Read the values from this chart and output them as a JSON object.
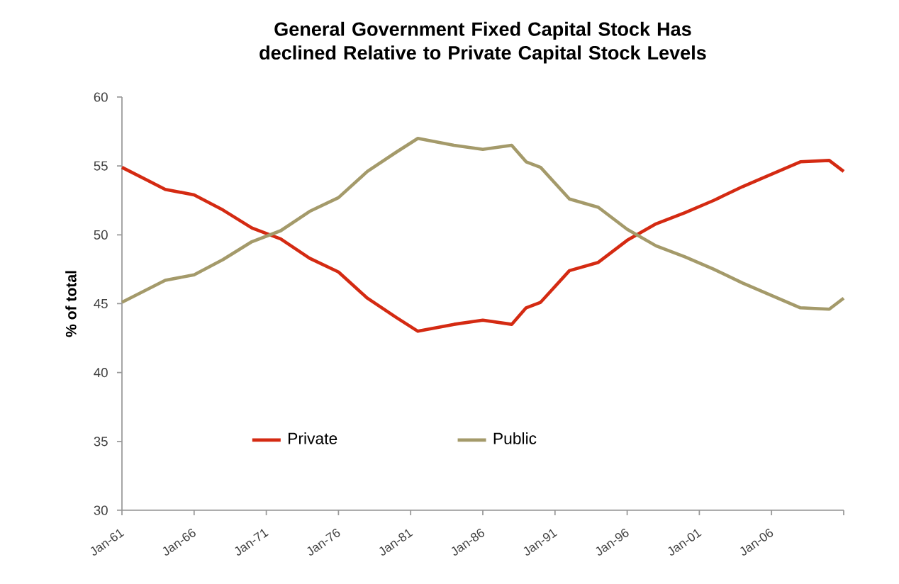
{
  "chart_data": {
    "type": "line",
    "title": "General Government Fixed Capital Stock Has declined Relative to Private Capital Stock Levels",
    "ylabel": "% of total",
    "x": [
      "1961-01",
      "1964-01",
      "1966-01",
      "1968-01",
      "1970-01",
      "1972-01",
      "1974-01",
      "1976-01",
      "1978-01",
      "1980-01",
      "1981-07",
      "1984-01",
      "1986-01",
      "1988-01",
      "1989-01",
      "1990-01",
      "1992-01",
      "1994-01",
      "1996-01",
      "1998-01",
      "2000-01",
      "2002-01",
      "2004-01",
      "2006-01",
      "2008-01",
      "2010-01",
      "2011-01"
    ],
    "series": [
      {
        "name": "Private",
        "color": "#d42a12",
        "values": [
          54.9,
          53.3,
          52.9,
          51.8,
          50.5,
          49.7,
          48.3,
          47.3,
          45.4,
          44.0,
          43.0,
          43.5,
          43.8,
          43.5,
          44.7,
          45.1,
          47.4,
          48.0,
          49.6,
          50.8,
          51.6,
          52.5,
          53.5,
          54.4,
          55.3,
          55.4,
          54.6
        ]
      },
      {
        "name": "Public",
        "color": "#a49a6a",
        "values": [
          45.1,
          46.7,
          47.1,
          48.2,
          49.5,
          50.3,
          51.7,
          52.7,
          54.6,
          56.0,
          57.0,
          56.5,
          56.2,
          56.5,
          55.3,
          54.9,
          52.6,
          52.0,
          50.4,
          49.2,
          48.4,
          47.5,
          46.5,
          45.6,
          44.7,
          44.6,
          45.4
        ]
      }
    ],
    "xlim": [
      "1961-01",
      "2011-01"
    ],
    "xticks": [
      {
        "value": "1961-01",
        "label": "Jan-61"
      },
      {
        "value": "1966-01",
        "label": "Jan-66"
      },
      {
        "value": "1971-01",
        "label": "Jan-71"
      },
      {
        "value": "1976-01",
        "label": "Jan-76"
      },
      {
        "value": "1981-01",
        "label": "Jan-81"
      },
      {
        "value": "1986-01",
        "label": "Jan-86"
      },
      {
        "value": "1991-01",
        "label": "Jan-91"
      },
      {
        "value": "1996-01",
        "label": "Jan-96"
      },
      {
        "value": "2001-01",
        "label": "Jan-01"
      },
      {
        "value": "2006-01",
        "label": "Jan-06"
      },
      {
        "value": "2011-01",
        "label": null
      }
    ],
    "ylim": [
      30,
      60
    ],
    "yticks": [
      30,
      35,
      40,
      45,
      50,
      55,
      60
    ],
    "grid": false,
    "legend": "bottom",
    "marker": "none",
    "line_style": "solid"
  }
}
